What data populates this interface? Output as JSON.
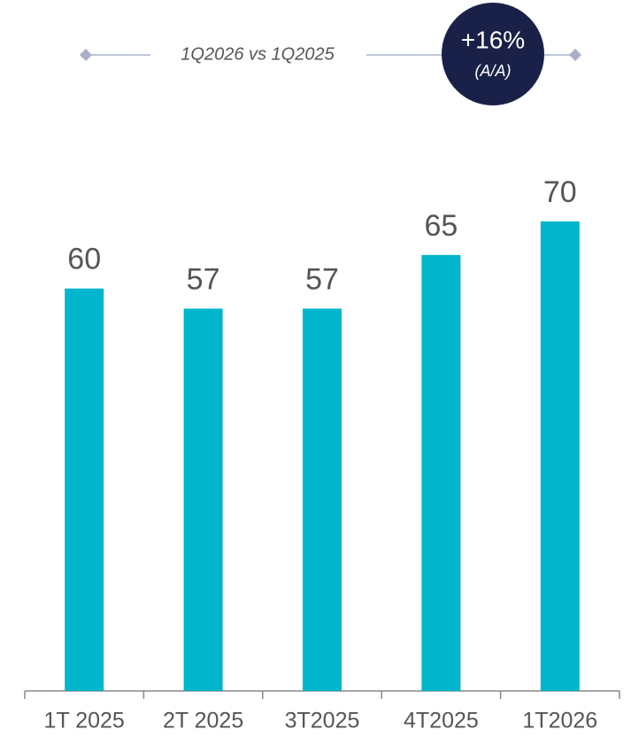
{
  "chart_data": {
    "type": "bar",
    "annotations": {
      "comparison": "1Q2026 vs 1Q2025",
      "change": "+16%",
      "change_note": "(A/A)"
    },
    "categories": [
      "1T 2025",
      "2T 2025",
      "3T2025",
      "4T2025",
      "1T2026"
    ],
    "values": [
      60,
      57,
      57,
      65,
      70
    ],
    "color": "#00b5cc"
  }
}
